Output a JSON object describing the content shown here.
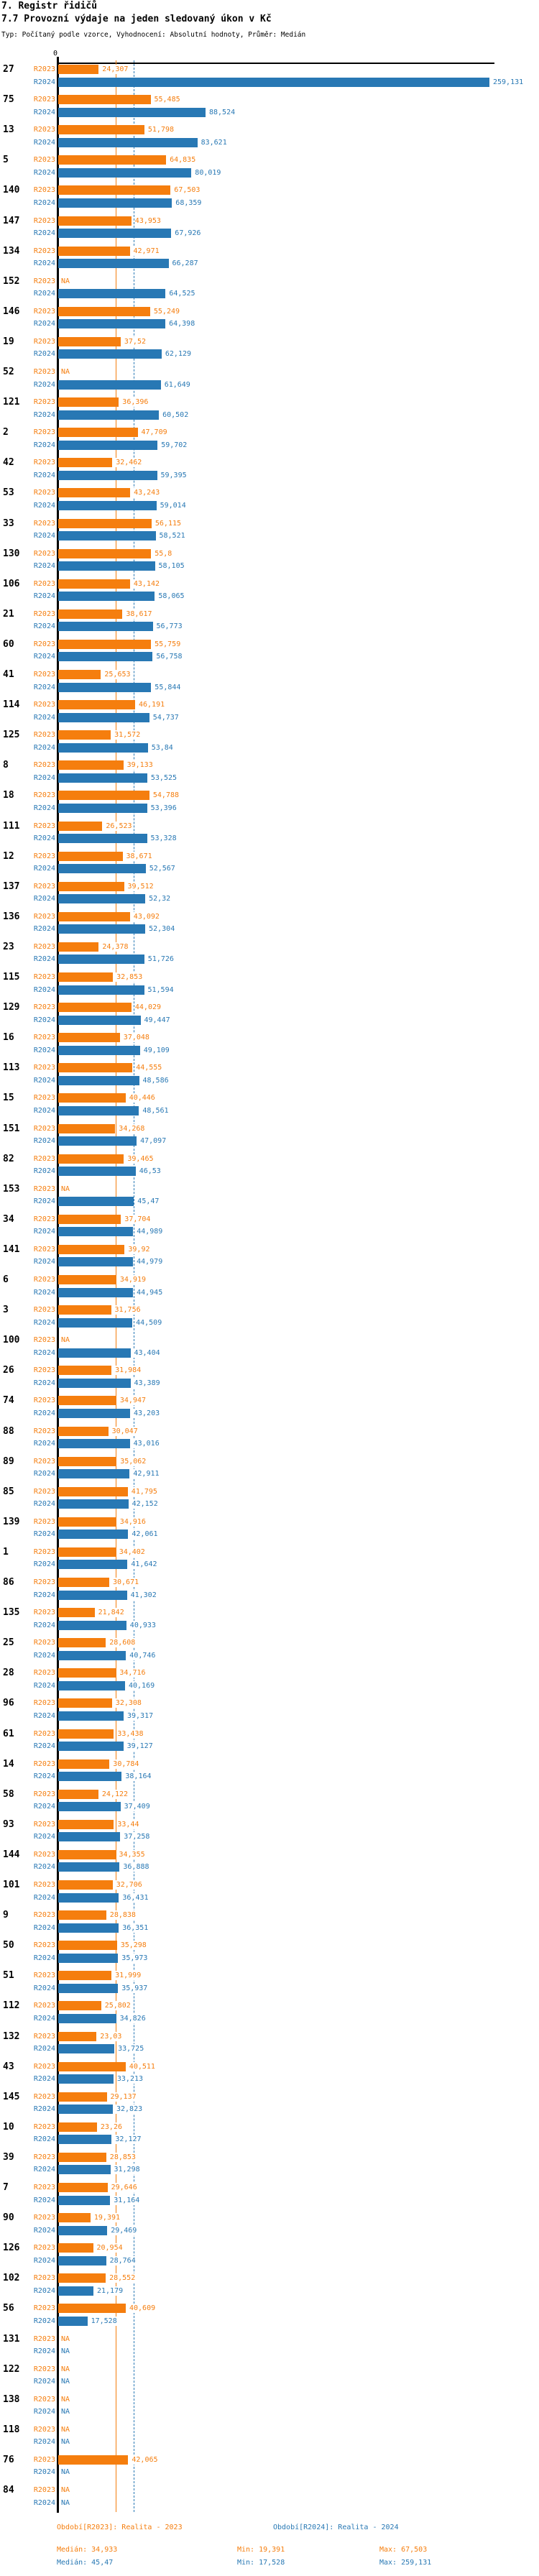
{
  "header": {
    "title": "7. Registr řidičů",
    "subtitle": "7.7 Provozní výdaje na jeden sledovaný úkon v Kč",
    "meta": "Typ: Počítaný podle vzorce, Vyhodnocení: Absolutní hodnoty, Průměr: Medián"
  },
  "axis": {
    "zero_label": "0"
  },
  "colors": {
    "series_2023": "#F57E0E",
    "series_2024": "#2878B4",
    "axis": "#000000"
  },
  "footer": {
    "period_2023": "Období[R2023]: Realita - 2023",
    "period_2024": "Období[R2024]: Realita - 2024",
    "median_2023": "Medián: 34,933",
    "min_2023": "Min: 19,391",
    "max_2023": "Max: 67,503",
    "median_2024": "Medián: 45,47",
    "min_2024": "Min: 17,528",
    "max_2024": "Max: 259,131"
  },
  "chart_data": {
    "type": "bar",
    "orientation": "horizontal",
    "value_unit": "Kč",
    "series_labels": [
      "R2023",
      "R2024"
    ],
    "na_label": "NA",
    "xlim": [
      0,
      260
    ],
    "median_2023": 34.933,
    "median_2024": 45.47,
    "rows": [
      {
        "id": "27",
        "v2023": "24,307",
        "v2024": "259,131"
      },
      {
        "id": "75",
        "v2023": "55,485",
        "v2024": "88,524"
      },
      {
        "id": "13",
        "v2023": "51,798",
        "v2024": "83,621"
      },
      {
        "id": "5",
        "v2023": "64,835",
        "v2024": "80,019"
      },
      {
        "id": "140",
        "v2023": "67,503",
        "v2024": "68,359"
      },
      {
        "id": "147",
        "v2023": "43,953",
        "v2024": "67,926"
      },
      {
        "id": "134",
        "v2023": "42,971",
        "v2024": "66,287"
      },
      {
        "id": "152",
        "v2023": null,
        "v2024": "64,525"
      },
      {
        "id": "146",
        "v2023": "55,249",
        "v2024": "64,398"
      },
      {
        "id": "19",
        "v2023": "37,52",
        "v2024": "62,129"
      },
      {
        "id": "52",
        "v2023": null,
        "v2024": "61,649"
      },
      {
        "id": "121",
        "v2023": "36,396",
        "v2024": "60,502"
      },
      {
        "id": "2",
        "v2023": "47,709",
        "v2024": "59,702"
      },
      {
        "id": "42",
        "v2023": "32,462",
        "v2024": "59,395"
      },
      {
        "id": "53",
        "v2023": "43,243",
        "v2024": "59,014"
      },
      {
        "id": "33",
        "v2023": "56,115",
        "v2024": "58,521"
      },
      {
        "id": "130",
        "v2023": "55,8",
        "v2024": "58,105"
      },
      {
        "id": "106",
        "v2023": "43,142",
        "v2024": "58,065"
      },
      {
        "id": "21",
        "v2023": "38,617",
        "v2024": "56,773"
      },
      {
        "id": "60",
        "v2023": "55,759",
        "v2024": "56,758"
      },
      {
        "id": "41",
        "v2023": "25,653",
        "v2024": "55,844"
      },
      {
        "id": "114",
        "v2023": "46,191",
        "v2024": "54,737"
      },
      {
        "id": "125",
        "v2023": "31,572",
        "v2024": "53,84"
      },
      {
        "id": "8",
        "v2023": "39,133",
        "v2024": "53,525"
      },
      {
        "id": "18",
        "v2023": "54,788",
        "v2024": "53,396"
      },
      {
        "id": "111",
        "v2023": "26,523",
        "v2024": "53,328"
      },
      {
        "id": "12",
        "v2023": "38,671",
        "v2024": "52,567"
      },
      {
        "id": "137",
        "v2023": "39,512",
        "v2024": "52,32"
      },
      {
        "id": "136",
        "v2023": "43,092",
        "v2024": "52,304"
      },
      {
        "id": "23",
        "v2023": "24,378",
        "v2024": "51,726"
      },
      {
        "id": "115",
        "v2023": "32,853",
        "v2024": "51,594"
      },
      {
        "id": "129",
        "v2023": "44,029",
        "v2024": "49,447"
      },
      {
        "id": "16",
        "v2023": "37,048",
        "v2024": "49,109"
      },
      {
        "id": "113",
        "v2023": "44,555",
        "v2024": "48,586"
      },
      {
        "id": "15",
        "v2023": "40,446",
        "v2024": "48,561"
      },
      {
        "id": "151",
        "v2023": "34,268",
        "v2024": "47,097"
      },
      {
        "id": "82",
        "v2023": "39,465",
        "v2024": "46,53"
      },
      {
        "id": "153",
        "v2023": null,
        "v2024": "45,47"
      },
      {
        "id": "34",
        "v2023": "37,704",
        "v2024": "44,989"
      },
      {
        "id": "141",
        "v2023": "39,92",
        "v2024": "44,979"
      },
      {
        "id": "6",
        "v2023": "34,919",
        "v2024": "44,945"
      },
      {
        "id": "3",
        "v2023": "31,756",
        "v2024": "44,509"
      },
      {
        "id": "100",
        "v2023": null,
        "v2024": "43,404"
      },
      {
        "id": "26",
        "v2023": "31,984",
        "v2024": "43,389"
      },
      {
        "id": "74",
        "v2023": "34,947",
        "v2024": "43,203"
      },
      {
        "id": "88",
        "v2023": "30,047",
        "v2024": "43,016"
      },
      {
        "id": "89",
        "v2023": "35,062",
        "v2024": "42,911"
      },
      {
        "id": "85",
        "v2023": "41,795",
        "v2024": "42,152"
      },
      {
        "id": "139",
        "v2023": "34,916",
        "v2024": "42,061"
      },
      {
        "id": "1",
        "v2023": "34,402",
        "v2024": "41,642"
      },
      {
        "id": "86",
        "v2023": "30,671",
        "v2024": "41,302"
      },
      {
        "id": "135",
        "v2023": "21,842",
        "v2024": "40,933"
      },
      {
        "id": "25",
        "v2023": "28,608",
        "v2024": "40,746"
      },
      {
        "id": "28",
        "v2023": "34,716",
        "v2024": "40,169"
      },
      {
        "id": "96",
        "v2023": "32,308",
        "v2024": "39,317"
      },
      {
        "id": "61",
        "v2023": "33,438",
        "v2024": "39,127"
      },
      {
        "id": "14",
        "v2023": "30,784",
        "v2024": "38,164"
      },
      {
        "id": "58",
        "v2023": "24,122",
        "v2024": "37,409"
      },
      {
        "id": "93",
        "v2023": "33,44",
        "v2024": "37,258"
      },
      {
        "id": "144",
        "v2023": "34,355",
        "v2024": "36,888"
      },
      {
        "id": "101",
        "v2023": "32,706",
        "v2024": "36,431"
      },
      {
        "id": "9",
        "v2023": "28,838",
        "v2024": "36,351"
      },
      {
        "id": "50",
        "v2023": "35,298",
        "v2024": "35,973"
      },
      {
        "id": "51",
        "v2023": "31,999",
        "v2024": "35,937"
      },
      {
        "id": "112",
        "v2023": "25,802",
        "v2024": "34,826"
      },
      {
        "id": "132",
        "v2023": "23,03",
        "v2024": "33,725"
      },
      {
        "id": "43",
        "v2023": "40,511",
        "v2024": "33,213"
      },
      {
        "id": "145",
        "v2023": "29,137",
        "v2024": "32,823"
      },
      {
        "id": "10",
        "v2023": "23,26",
        "v2024": "32,127"
      },
      {
        "id": "39",
        "v2023": "28,853",
        "v2024": "31,298"
      },
      {
        "id": "7",
        "v2023": "29,646",
        "v2024": "31,164"
      },
      {
        "id": "90",
        "v2023": "19,391",
        "v2024": "29,469"
      },
      {
        "id": "126",
        "v2023": "20,954",
        "v2024": "28,764"
      },
      {
        "id": "102",
        "v2023": "28,552",
        "v2024": "21,179"
      },
      {
        "id": "56",
        "v2023": "40,609",
        "v2024": "17,528"
      },
      {
        "id": "131",
        "v2023": null,
        "v2024": null
      },
      {
        "id": "122",
        "v2023": null,
        "v2024": null
      },
      {
        "id": "138",
        "v2023": null,
        "v2024": null
      },
      {
        "id": "118",
        "v2023": null,
        "v2024": null
      },
      {
        "id": "76",
        "v2023": "42,065",
        "v2024": null
      },
      {
        "id": "84",
        "v2023": null,
        "v2024": null
      }
    ]
  }
}
